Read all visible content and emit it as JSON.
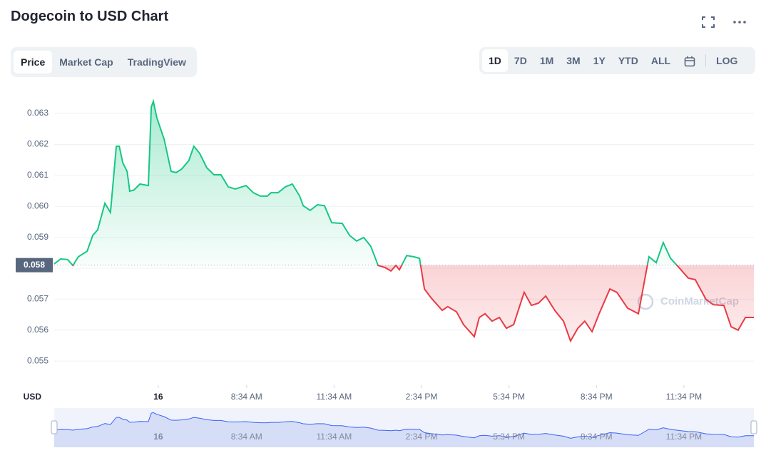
{
  "header": {
    "title": "Dogecoin to USD Chart"
  },
  "tabs": [
    "Price",
    "Market Cap",
    "TradingView"
  ],
  "ranges": [
    "1D",
    "7D",
    "1M",
    "3M",
    "1Y",
    "YTD",
    "ALL"
  ],
  "log_button": "LOG",
  "chart_data": {
    "type": "line",
    "x": [
      0,
      0.22,
      0.46,
      0.64,
      0.83,
      1.13,
      1.32,
      1.49,
      1.74,
      1.93,
      2.13,
      2.23,
      2.35,
      2.5,
      2.59,
      2.74,
      2.94,
      3.23,
      3.33,
      3.4,
      3.52,
      3.77,
      4.01,
      4.18,
      4.37,
      4.62,
      4.79,
      4.99,
      5.23,
      5.48,
      5.72,
      5.97,
      6.21,
      6.58,
      6.83,
      7.07,
      7.31,
      7.44,
      7.68,
      7.93,
      8.17,
      8.42,
      8.54,
      8.78,
      9.03,
      9.27,
      9.52,
      9.88,
      10.13,
      10.37,
      10.62,
      10.86,
      11.11,
      11.35,
      11.55,
      11.72,
      11.84,
      12.09,
      12.33,
      12.53,
      12.7,
      12.94,
      13.31,
      13.5,
      13.8,
      14.04,
      14.41,
      14.58,
      14.78,
      15.02,
      15.27,
      15.51,
      15.76,
      16.12,
      16.37,
      16.61,
      16.86,
      17.17,
      17.47,
      17.71,
      17.96,
      18.2,
      18.45,
      18.69,
      19.06,
      19.3,
      19.67,
      20.04,
      20.4,
      20.65,
      20.89,
      21.14,
      21.5,
      21.75,
      21.99,
      22.36,
      22.61,
      22.97,
      23.22,
      23.46,
      23.71,
      24
    ],
    "values": [
      0.05814,
      0.0583,
      0.05828,
      0.05809,
      0.05837,
      0.05855,
      0.05906,
      0.05924,
      0.0601,
      0.0598,
      0.06194,
      0.06194,
      0.06141,
      0.06113,
      0.06049,
      0.06053,
      0.06072,
      0.06067,
      0.06321,
      0.06339,
      0.06286,
      0.06217,
      0.06113,
      0.06109,
      0.0612,
      0.06148,
      0.06194,
      0.06171,
      0.06125,
      0.06102,
      0.06102,
      0.06063,
      0.06056,
      0.06067,
      0.06044,
      0.06033,
      0.06033,
      0.06044,
      0.06044,
      0.06063,
      0.06072,
      0.06033,
      0.06002,
      0.05987,
      0.06005,
      0.06002,
      0.05947,
      0.05945,
      0.05906,
      0.05888,
      0.05899,
      0.05871,
      0.05809,
      0.05802,
      0.05791,
      0.05809,
      0.05795,
      0.05841,
      0.05837,
      0.05832,
      0.05733,
      0.05703,
      0.05664,
      0.05676,
      0.05659,
      0.05618,
      0.05579,
      0.05641,
      0.05653,
      0.05629,
      0.05641,
      0.05606,
      0.05618,
      0.05722,
      0.0568,
      0.05687,
      0.0571,
      0.05664,
      0.05629,
      0.05565,
      0.05606,
      0.05629,
      0.05595,
      0.05653,
      0.05733,
      0.05722,
      0.05671,
      0.05653,
      0.05837,
      0.05818,
      0.05883,
      0.05832,
      0.05795,
      0.05768,
      0.05763,
      0.05699,
      0.05682,
      0.0568,
      0.05611,
      0.056,
      0.05641,
      0.05641
    ],
    "up_color": "#16c784",
    "down_color": "#ea3943",
    "baseline": {
      "value": 0.0581,
      "label": "0.058"
    },
    "ylabel": "USD",
    "watermark": "CoinMarketCap",
    "xlim": [
      0,
      24
    ],
    "xticks": [
      {
        "value": 3.57,
        "label": "16"
      },
      {
        "value": 6.6,
        "label": "8:34 AM"
      },
      {
        "value": 9.6,
        "label": "11:34 AM"
      },
      {
        "value": 12.6,
        "label": "2:34 PM"
      },
      {
        "value": 15.6,
        "label": "5:34 PM"
      },
      {
        "value": 18.6,
        "label": "8:34 PM"
      },
      {
        "value": 21.6,
        "label": "11:34 PM"
      }
    ],
    "ylim": [
      0.05422,
      0.0639
    ],
    "yticks": [
      0.055,
      0.056,
      0.057,
      0.058,
      0.059,
      {
        "value": 0.06,
        "label": "0.060"
      },
      0.061,
      0.062,
      0.063
    ],
    "grid": true
  }
}
